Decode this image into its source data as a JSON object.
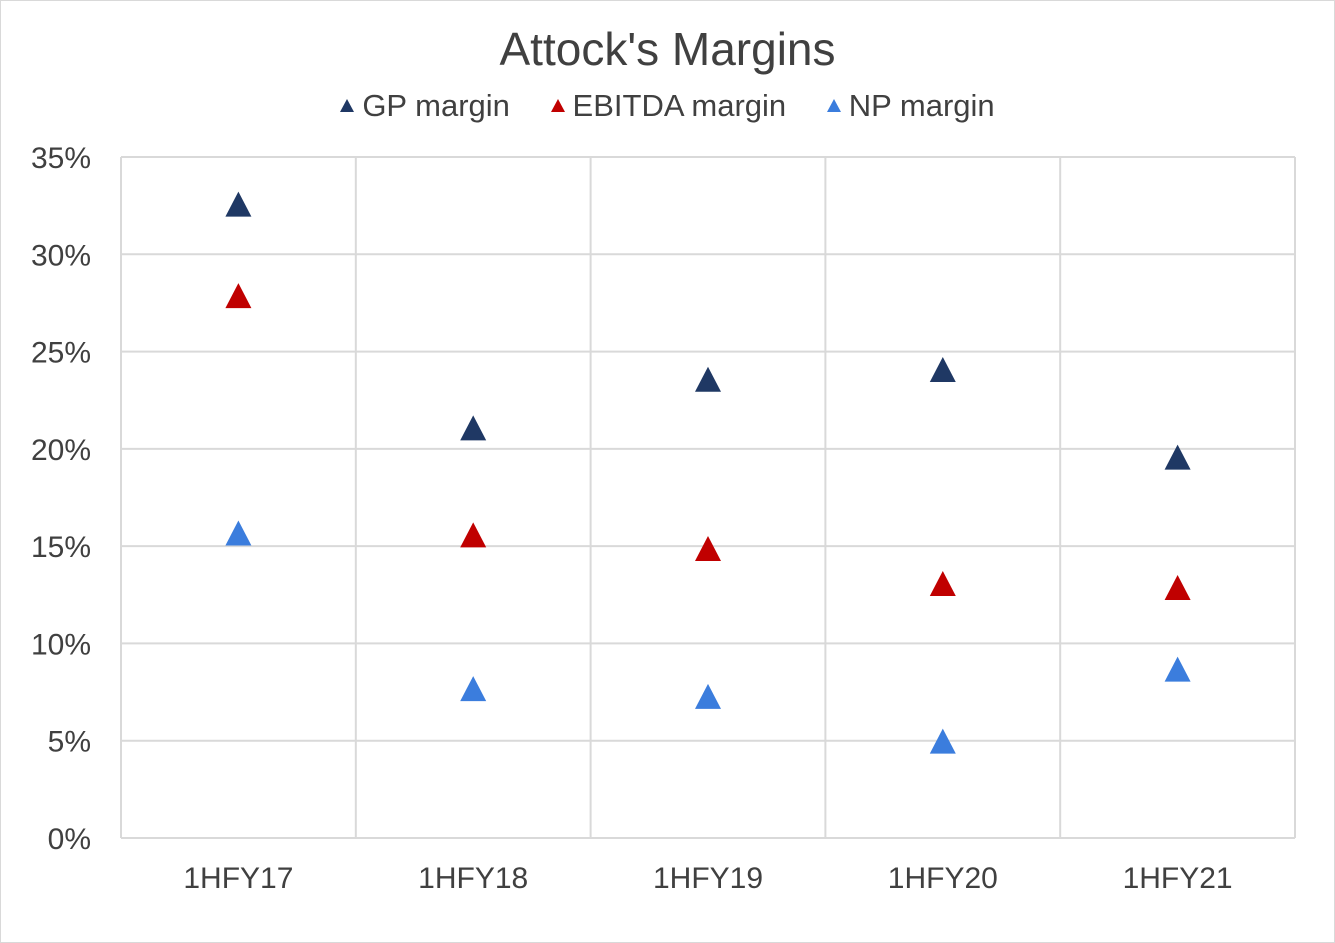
{
  "chart_data": {
    "type": "scatter",
    "title": "Attock's Margins",
    "xlabel": "",
    "ylabel": "",
    "categories": [
      "1HFY17",
      "1HFY18",
      "1HFY19",
      "1HFY20",
      "1HFY21"
    ],
    "yticks": [
      "0%",
      "5%",
      "10%",
      "15%",
      "20%",
      "25%",
      "30%",
      "35%"
    ],
    "ylim": [
      0,
      35
    ],
    "grid": true,
    "legend": "top",
    "marker": "triangle",
    "series": [
      {
        "name": "GP margin",
        "color": "#1f3864",
        "values": [
          32.5,
          21.0,
          23.5,
          24.0,
          19.5
        ]
      },
      {
        "name": "EBITDA margin",
        "color": "#c00000",
        "values": [
          27.8,
          15.5,
          14.8,
          13.0,
          12.8
        ]
      },
      {
        "name": "NP margin",
        "color": "#3b7ddd",
        "values": [
          15.6,
          7.6,
          7.2,
          4.9,
          8.6
        ]
      }
    ]
  }
}
